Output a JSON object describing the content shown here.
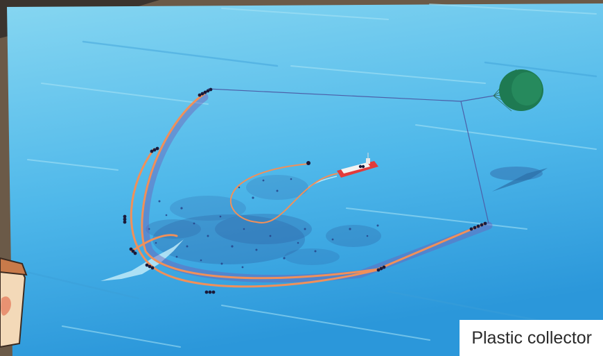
{
  "caption": {
    "text": "Plastic collector"
  },
  "colors": {
    "ocean_top": "#7fd2ef",
    "ocean_bottom": "#2f9ddd",
    "boom": "#f0905a",
    "boom_shadow": "#6f5fb8",
    "line": "#4c5fa8",
    "drogue": "#1e7a52",
    "vessel": "#e23b3b",
    "plastic": "#243f86",
    "frame": "#6b5a48"
  },
  "icons": {
    "drogue": "sea-anchor-icon",
    "vessel": "support-vessel-icon",
    "buoy": "buoy-cluster-icon",
    "cup": "coffee-cup-icon"
  }
}
